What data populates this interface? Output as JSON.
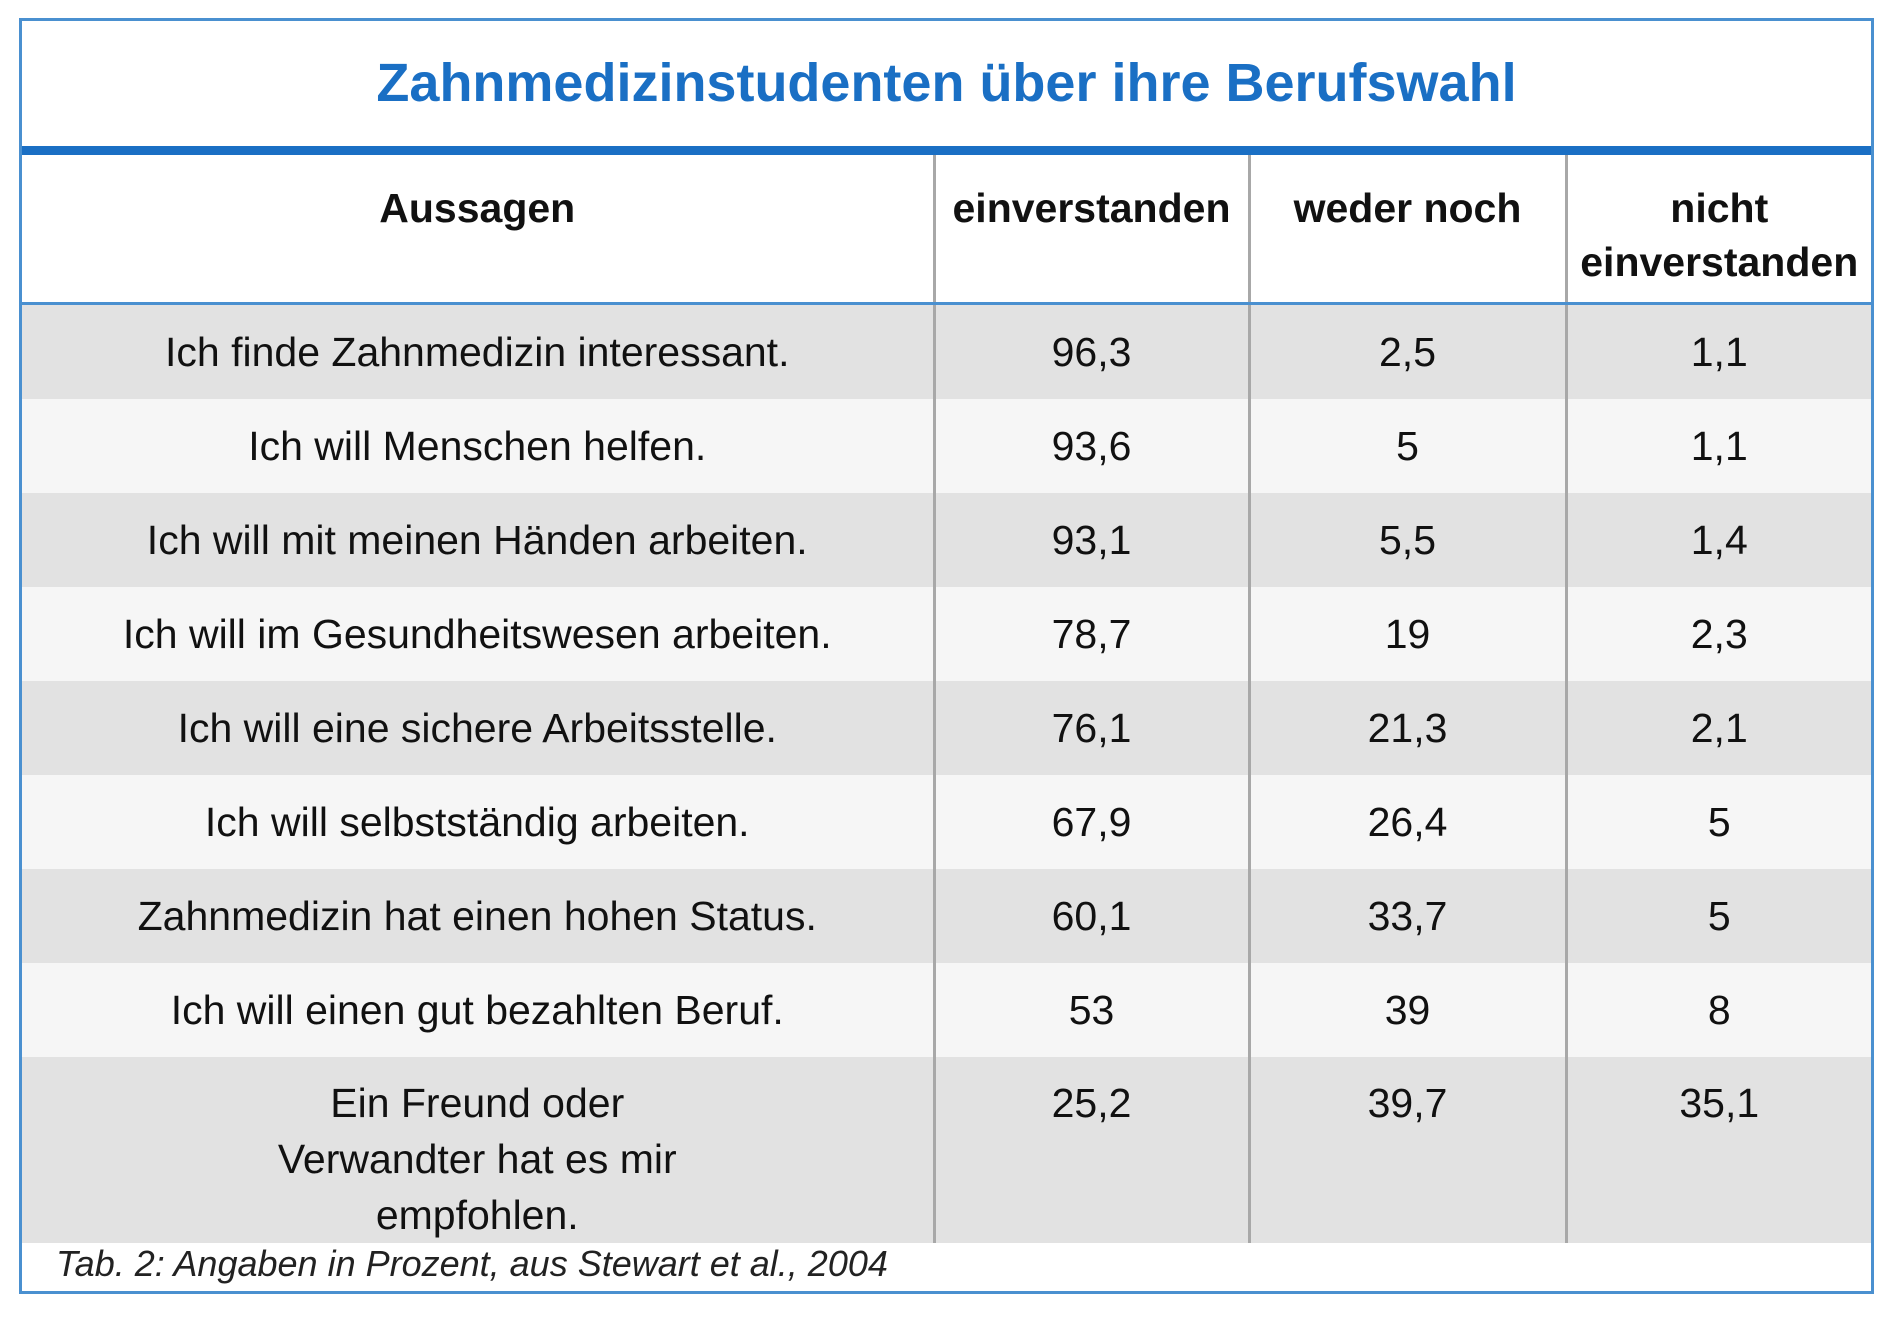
{
  "title": "Zahnmedizinstudenten über ihre Berufswahl",
  "table": {
    "header": [
      "Aussagen",
      "einverstanden",
      "weder noch",
      "nicht einverstanden"
    ],
    "rows": [
      [
        "Ich finde Zahnmedizin interessant.",
        "96,3",
        "2,5",
        "1,1"
      ],
      [
        "Ich will Menschen helfen.",
        "93,6",
        "5",
        "1,1"
      ],
      [
        "Ich will mit meinen Händen arbeiten.",
        "93,1",
        "5,5",
        "1,4"
      ],
      [
        "Ich will im Gesundheitswesen arbeiten.",
        "78,7",
        "19",
        "2,3"
      ],
      [
        "Ich will eine sichere Arbeitsstelle.",
        "76,1",
        "21,3",
        "2,1"
      ],
      [
        "Ich will selbstständig arbeiten.",
        "67,9",
        "26,4",
        "5"
      ],
      [
        "Zahnmedizin hat einen hohen Status.",
        "60,1",
        "33,7",
        "5"
      ],
      [
        "Ich will einen gut bezahlten Beruf.",
        "53",
        "39",
        "8"
      ],
      [
        "Ein Freund oder Verwandter hat es mir empfohlen.",
        "25,2",
        "39,7",
        "35,1"
      ]
    ]
  },
  "caption": "Tab. 2: Angaben in Prozent, aus Stewart et al., 2004"
}
